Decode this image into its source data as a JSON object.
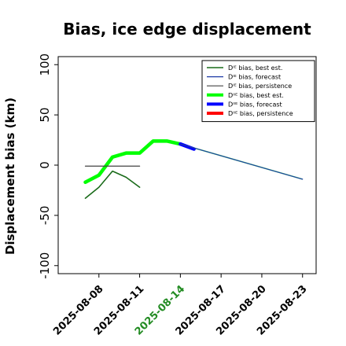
{
  "chart_data": {
    "type": "line",
    "title": "Bias, ice edge displacement",
    "ylabel": "Displacement bias (km)",
    "xlabel": "",
    "ylim": [
      -108,
      108
    ],
    "xlim": [
      "2025-08-05",
      "2025-08-24"
    ],
    "x_ticks": [
      "2025-08-08",
      "2025-08-11",
      "2025-08-14",
      "2025-08-17",
      "2025-08-20",
      "2025-08-23"
    ],
    "highlighted_tick": "2025-08-14",
    "highlight_color": "#228b22",
    "y_ticks": [
      100,
      50,
      0,
      -50,
      -100
    ],
    "grid": false,
    "legend_position": "top-right",
    "series": [
      {
        "name": "Dᴵᴱ bias, best est.",
        "color": "#1a6b1a",
        "width": 1.6,
        "x": [
          "2025-08-07",
          "2025-08-08",
          "2025-08-09",
          "2025-08-10",
          "2025-08-11"
        ],
        "values": [
          -33,
          -22,
          -6,
          -12,
          -22
        ]
      },
      {
        "name": "Dᴵᴱ bias, forecast",
        "color": "#1f3aa6",
        "width": 1.2,
        "x": [
          "2025-08-14",
          "2025-08-23"
        ],
        "values": [
          21,
          -14
        ]
      },
      {
        "name": "Dᴵᴱ bias, persistence",
        "color": "#444444",
        "width": 1.2,
        "x": [
          "2025-08-07",
          "2025-08-11"
        ],
        "values": [
          -1,
          -1
        ]
      },
      {
        "name": "Dᴵᴵᴱ bias, best est.",
        "color": "#00ff00",
        "width": 4.5,
        "x": [
          "2025-08-07",
          "2025-08-08",
          "2025-08-09",
          "2025-08-10",
          "2025-08-11",
          "2025-08-12",
          "2025-08-13",
          "2025-08-14"
        ],
        "values": [
          -17,
          -10,
          8,
          12,
          12,
          24,
          24,
          21
        ]
      },
      {
        "name": "Dᴵᴵᴱ bias, forecast",
        "color": "#0000ff",
        "width": 4.5,
        "x": [
          "2025-08-14",
          "2025-08-15"
        ],
        "values": [
          21,
          16
        ]
      },
      {
        "name": "Dᴵᴵᴱ bias, persistence",
        "color": "#ff0000",
        "width": 4.5,
        "x": [],
        "values": []
      }
    ],
    "faint_forecast": {
      "color": "#66ff66",
      "x": [
        "2025-08-14",
        "2025-08-23"
      ],
      "values": [
        21,
        -14
      ]
    }
  }
}
